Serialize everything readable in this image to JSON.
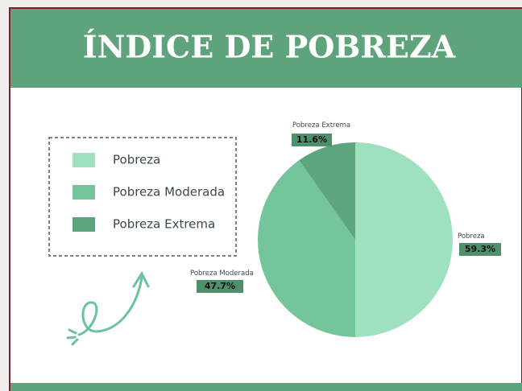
{
  "chart_data": {
    "type": "pie",
    "title": "ÍNDICE DE POBREZA",
    "categories": [
      "Pobreza",
      "Pobreza Moderada",
      "Pobreza Extrema"
    ],
    "values": [
      59.3,
      47.7,
      11.6
    ],
    "value_labels": [
      "59.3%",
      "47.7%",
      "11.6%"
    ],
    "colors": [
      "#9fe0bf",
      "#74c49c",
      "#5ca57e"
    ],
    "legend": "left"
  }
}
